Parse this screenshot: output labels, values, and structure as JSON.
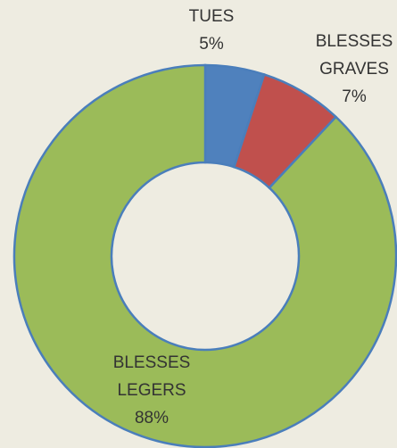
{
  "chart_data": {
    "type": "donut",
    "categories": [
      "TUES",
      "BLESSES GRAVES",
      "BLESSES LEGERS"
    ],
    "values": [
      5,
      7,
      88
    ],
    "value_labels": [
      "5%",
      "7%",
      "88%"
    ],
    "colors": [
      "#4f81bd",
      "#c0504d",
      "#9bbb59"
    ]
  }
}
